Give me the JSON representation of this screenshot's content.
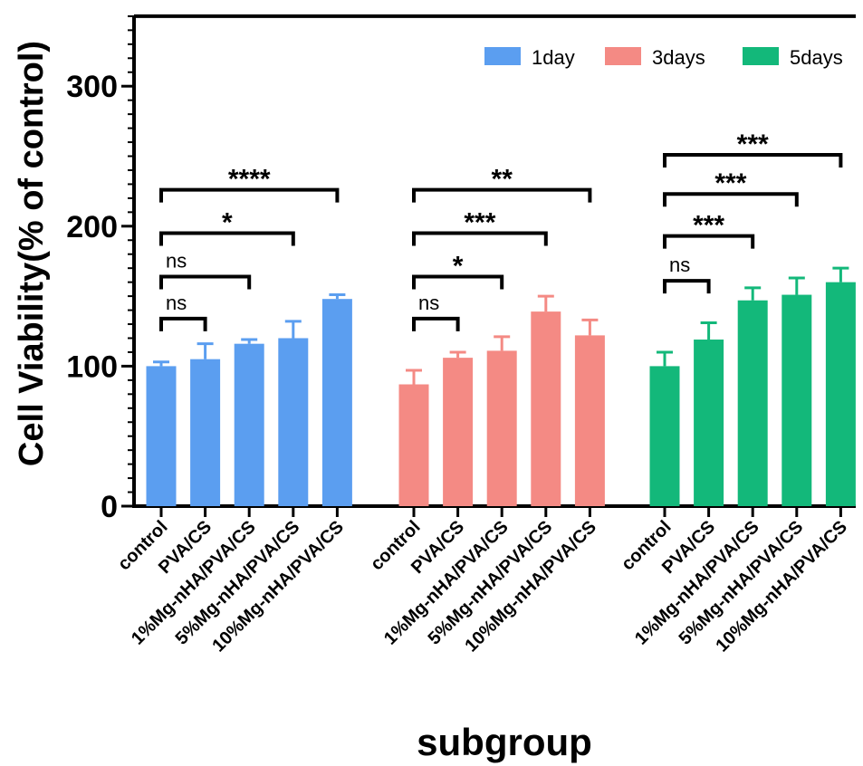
{
  "chart_data": {
    "type": "bar",
    "xlabel": "subgroup",
    "ylabel": "Cell Viability(% of control)",
    "ylim": [
      0,
      350
    ],
    "yticks": [
      0,
      100,
      200,
      300
    ],
    "legend_position": "top-right",
    "categories": [
      "control",
      "PVA/CS",
      "1%Mg-nHA/PVA/CS",
      "5%Mg-nHA/PVA/CS",
      "10%Mg-nHA/PVA/CS"
    ],
    "series": [
      {
        "name": "1day",
        "color": "#5b9ef0",
        "values": [
          100,
          105,
          116,
          120,
          148
        ],
        "errors": [
          3,
          11,
          3,
          12,
          3
        ]
      },
      {
        "name": "3days",
        "color": "#f48a84",
        "values": [
          87,
          106,
          111,
          139,
          122
        ],
        "errors": [
          10,
          4,
          10,
          11,
          11
        ]
      },
      {
        "name": "5days",
        "color": "#13b87a",
        "values": [
          100,
          119,
          147,
          151,
          160
        ],
        "errors": [
          10,
          12,
          9,
          12,
          10
        ]
      }
    ],
    "significance": [
      [
        {
          "to": 1,
          "label": "ns",
          "level": 134
        },
        {
          "to": 2,
          "label": "ns",
          "level": 164
        },
        {
          "to": 3,
          "label": "*",
          "level": 195
        },
        {
          "to": 4,
          "label": "****",
          "level": 226
        }
      ],
      [
        {
          "to": 1,
          "label": "ns",
          "level": 134
        },
        {
          "to": 2,
          "label": "*",
          "level": 164
        },
        {
          "to": 3,
          "label": "***",
          "level": 195
        },
        {
          "to": 4,
          "label": "**",
          "level": 226
        }
      ],
      [
        {
          "to": 1,
          "label": "ns",
          "level": 161
        },
        {
          "to": 2,
          "label": "***",
          "level": 193
        },
        {
          "to": 3,
          "label": "***",
          "level": 223
        },
        {
          "to": 4,
          "label": "***",
          "level": 251
        }
      ]
    ]
  }
}
